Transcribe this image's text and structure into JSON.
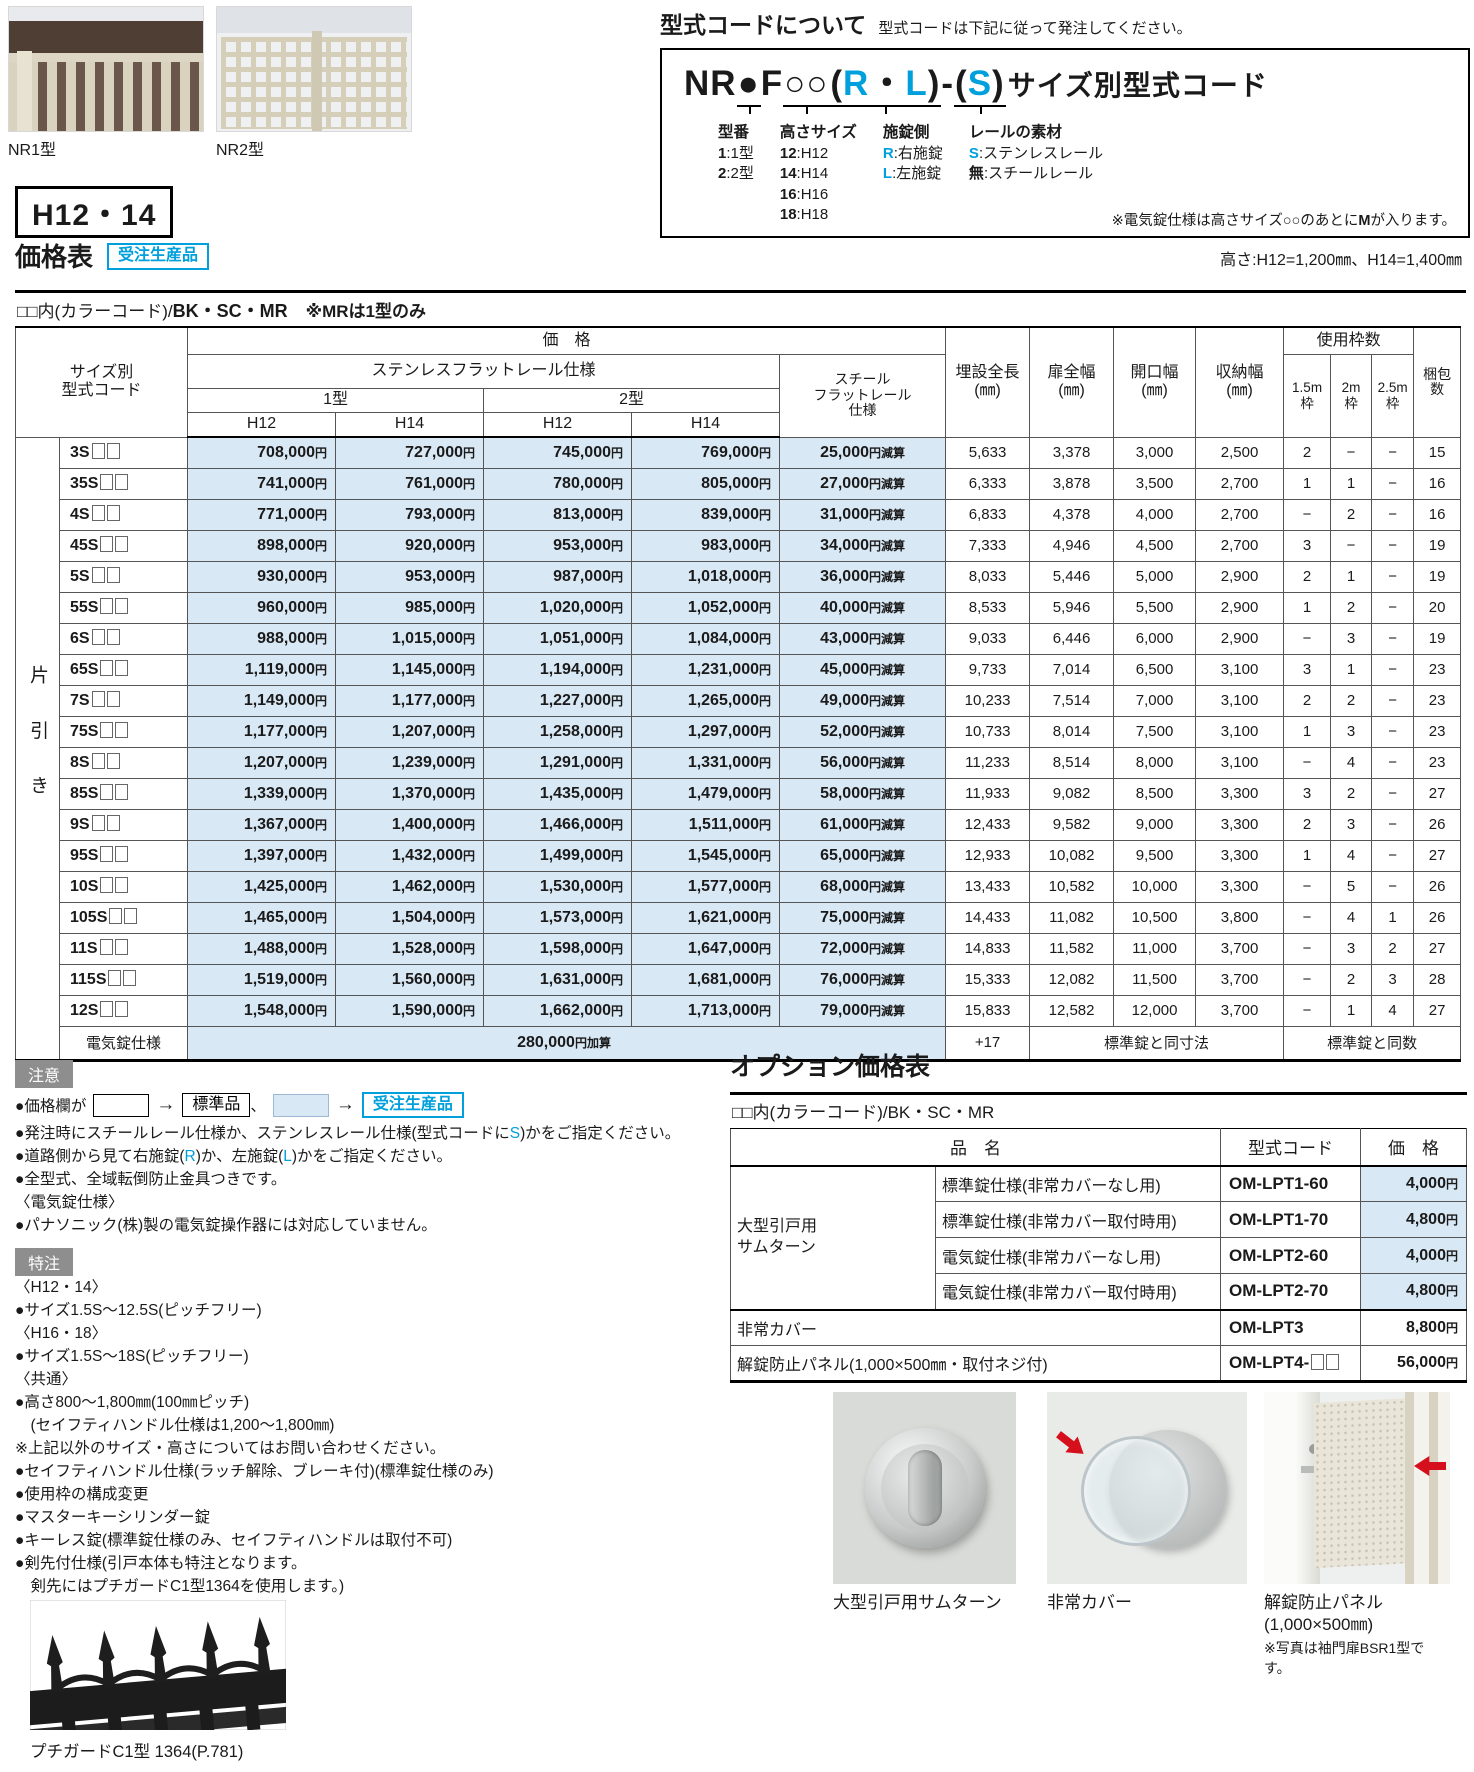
{
  "figures": {
    "nr1_caption": "NR1型",
    "nr2_caption": "NR2型"
  },
  "code_box": {
    "heading": "型式コードについて",
    "heading_note": "型式コードは下記に従って発注してください。",
    "code": {
      "prefix": "NR",
      "dot": "●",
      "f": "F",
      "circles": "○○",
      "p1": "(",
      "r": "R",
      "sep": "・",
      "l": "L",
      "p2": ")",
      "dash": "-",
      "p3": "(",
      "s": "S",
      "p4": ")",
      "suffix": "サイズ別型式コード"
    },
    "legend": [
      {
        "title": "型番",
        "items": [
          {
            "key": "1",
            "desc": ":1型"
          },
          {
            "key": "2",
            "desc": ":2型"
          }
        ]
      },
      {
        "title": "高さサイズ",
        "items": [
          {
            "key": "12",
            "desc": ":H12"
          },
          {
            "key": "14",
            "desc": ":H14"
          },
          {
            "key": "16",
            "desc": ":H16"
          },
          {
            "key": "18",
            "desc": ":H18"
          }
        ]
      },
      {
        "title": "施錠側",
        "items": [
          {
            "key": "R",
            "desc": ":右施錠",
            "blue": true
          },
          {
            "key": "L",
            "desc": ":左施錠",
            "blue": true
          }
        ]
      },
      {
        "title": "レールの素材",
        "items": [
          {
            "key": "S",
            "desc": ":ステンレスレール",
            "blue": true
          },
          {
            "key": "無",
            "desc": ":スチールレール"
          }
        ]
      }
    ],
    "note": [
      "※電気錠仕様は高さサイズ○○のあとに",
      {
        "t": "M",
        "bold": true
      },
      "が入ります。"
    ]
  },
  "height_badge": "H12・14",
  "price_section": {
    "title": "価格表",
    "badge": "受注生産品",
    "height_note": "高さ:H12=1,200㎜、H14=1,400㎜",
    "color_code": {
      "prefix": "□□内(カラーコード)/",
      "codes": "BK・SC・MR",
      "note": "※MRは1型のみ"
    }
  },
  "price_table": {
    "group_label": "片引き",
    "headers": {
      "size_code": "サイズ別\n型式コード",
      "price": "価　格",
      "stainless": "ステンレスフラットレール仕様",
      "steel": "スチール\nフラットレール\n仕様",
      "type1": "1型",
      "type2": "2型",
      "h12": "H12",
      "h14": "H14",
      "buried_length": "埋設全長\n(㎜)",
      "door_width": "扉全幅\n(㎜)",
      "opening_width": "開口幅\n(㎜)",
      "storage_width": "収納幅\n(㎜)",
      "frames_used": "使用枠数",
      "frame_15": "1.5m\n枠",
      "frame_2": "2m\n枠",
      "frame_25": "2.5m\n枠",
      "packages": "梱包\n数"
    },
    "rows": [
      {
        "code": "3S□□",
        "t1_h12": "708,000円",
        "t1_h14": "727,000円",
        "t2_h12": "745,000円",
        "t2_h14": "769,000円",
        "steel": "25,000円減算",
        "buried": "5,633",
        "door": "3,378",
        "opening": "3,000",
        "storage": "2,500",
        "f15": "2",
        "f2": "−",
        "f25": "−",
        "pack": "15"
      },
      {
        "code": "35S□□",
        "t1_h12": "741,000円",
        "t1_h14": "761,000円",
        "t2_h12": "780,000円",
        "t2_h14": "805,000円",
        "steel": "27,000円減算",
        "buried": "6,333",
        "door": "3,878",
        "opening": "3,500",
        "storage": "2,700",
        "f15": "1",
        "f2": "1",
        "f25": "−",
        "pack": "16"
      },
      {
        "code": "4S□□",
        "t1_h12": "771,000円",
        "t1_h14": "793,000円",
        "t2_h12": "813,000円",
        "t2_h14": "839,000円",
        "steel": "31,000円減算",
        "buried": "6,833",
        "door": "4,378",
        "opening": "4,000",
        "storage": "2,700",
        "f15": "−",
        "f2": "2",
        "f25": "−",
        "pack": "16"
      },
      {
        "code": "45S□□",
        "t1_h12": "898,000円",
        "t1_h14": "920,000円",
        "t2_h12": "953,000円",
        "t2_h14": "983,000円",
        "steel": "34,000円減算",
        "buried": "7,333",
        "door": "4,946",
        "opening": "4,500",
        "storage": "2,700",
        "f15": "3",
        "f2": "−",
        "f25": "−",
        "pack": "19"
      },
      {
        "code": "5S□□",
        "t1_h12": "930,000円",
        "t1_h14": "953,000円",
        "t2_h12": "987,000円",
        "t2_h14": "1,018,000円",
        "steel": "36,000円減算",
        "buried": "8,033",
        "door": "5,446",
        "opening": "5,000",
        "storage": "2,900",
        "f15": "2",
        "f2": "1",
        "f25": "−",
        "pack": "19"
      },
      {
        "code": "55S□□",
        "t1_h12": "960,000円",
        "t1_h14": "985,000円",
        "t2_h12": "1,020,000円",
        "t2_h14": "1,052,000円",
        "steel": "40,000円減算",
        "buried": "8,533",
        "door": "5,946",
        "opening": "5,500",
        "storage": "2,900",
        "f15": "1",
        "f2": "2",
        "f25": "−",
        "pack": "20"
      },
      {
        "code": "6S□□",
        "t1_h12": "988,000円",
        "t1_h14": "1,015,000円",
        "t2_h12": "1,051,000円",
        "t2_h14": "1,084,000円",
        "steel": "43,000円減算",
        "buried": "9,033",
        "door": "6,446",
        "opening": "6,000",
        "storage": "2,900",
        "f15": "−",
        "f2": "3",
        "f25": "−",
        "pack": "19"
      },
      {
        "code": "65S□□",
        "t1_h12": "1,119,000円",
        "t1_h14": "1,145,000円",
        "t2_h12": "1,194,000円",
        "t2_h14": "1,231,000円",
        "steel": "45,000円減算",
        "buried": "9,733",
        "door": "7,014",
        "opening": "6,500",
        "storage": "3,100",
        "f15": "3",
        "f2": "1",
        "f25": "−",
        "pack": "23"
      },
      {
        "code": "7S□□",
        "t1_h12": "1,149,000円",
        "t1_h14": "1,177,000円",
        "t2_h12": "1,227,000円",
        "t2_h14": "1,265,000円",
        "steel": "49,000円減算",
        "buried": "10,233",
        "door": "7,514",
        "opening": "7,000",
        "storage": "3,100",
        "f15": "2",
        "f2": "2",
        "f25": "−",
        "pack": "23"
      },
      {
        "code": "75S□□",
        "t1_h12": "1,177,000円",
        "t1_h14": "1,207,000円",
        "t2_h12": "1,258,000円",
        "t2_h14": "1,297,000円",
        "steel": "52,000円減算",
        "buried": "10,733",
        "door": "8,014",
        "opening": "7,500",
        "storage": "3,100",
        "f15": "1",
        "f2": "3",
        "f25": "−",
        "pack": "23"
      },
      {
        "code": "8S□□",
        "t1_h12": "1,207,000円",
        "t1_h14": "1,239,000円",
        "t2_h12": "1,291,000円",
        "t2_h14": "1,331,000円",
        "steel": "56,000円減算",
        "buried": "11,233",
        "door": "8,514",
        "opening": "8,000",
        "storage": "3,100",
        "f15": "−",
        "f2": "4",
        "f25": "−",
        "pack": "23"
      },
      {
        "code": "85S□□",
        "t1_h12": "1,339,000円",
        "t1_h14": "1,370,000円",
        "t2_h12": "1,435,000円",
        "t2_h14": "1,479,000円",
        "steel": "58,000円減算",
        "buried": "11,933",
        "door": "9,082",
        "opening": "8,500",
        "storage": "3,300",
        "f15": "3",
        "f2": "2",
        "f25": "−",
        "pack": "27"
      },
      {
        "code": "9S□□",
        "t1_h12": "1,367,000円",
        "t1_h14": "1,400,000円",
        "t2_h12": "1,466,000円",
        "t2_h14": "1,511,000円",
        "steel": "61,000円減算",
        "buried": "12,433",
        "door": "9,582",
        "opening": "9,000",
        "storage": "3,300",
        "f15": "2",
        "f2": "3",
        "f25": "−",
        "pack": "26"
      },
      {
        "code": "95S□□",
        "t1_h12": "1,397,000円",
        "t1_h14": "1,432,000円",
        "t2_h12": "1,499,000円",
        "t2_h14": "1,545,000円",
        "steel": "65,000円減算",
        "buried": "12,933",
        "door": "10,082",
        "opening": "9,500",
        "storage": "3,300",
        "f15": "1",
        "f2": "4",
        "f25": "−",
        "pack": "27"
      },
      {
        "code": "10S□□",
        "t1_h12": "1,425,000円",
        "t1_h14": "1,462,000円",
        "t2_h12": "1,530,000円",
        "t2_h14": "1,577,000円",
        "steel": "68,000円減算",
        "buried": "13,433",
        "door": "10,582",
        "opening": "10,000",
        "storage": "3,300",
        "f15": "−",
        "f2": "5",
        "f25": "−",
        "pack": "26"
      },
      {
        "code": "105S□□",
        "t1_h12": "1,465,000円",
        "t1_h14": "1,504,000円",
        "t2_h12": "1,573,000円",
        "t2_h14": "1,621,000円",
        "steel": "75,000円減算",
        "buried": "14,433",
        "door": "11,082",
        "opening": "10,500",
        "storage": "3,800",
        "f15": "−",
        "f2": "4",
        "f25": "1",
        "pack": "26"
      },
      {
        "code": "11S□□",
        "t1_h12": "1,488,000円",
        "t1_h14": "1,528,000円",
        "t2_h12": "1,598,000円",
        "t2_h14": "1,647,000円",
        "steel": "72,000円減算",
        "buried": "14,833",
        "door": "11,582",
        "opening": "11,000",
        "storage": "3,700",
        "f15": "−",
        "f2": "3",
        "f25": "2",
        "pack": "27"
      },
      {
        "code": "115S□□",
        "t1_h12": "1,519,000円",
        "t1_h14": "1,560,000円",
        "t2_h12": "1,631,000円",
        "t2_h14": "1,681,000円",
        "steel": "76,000円減算",
        "buried": "15,333",
        "door": "12,082",
        "opening": "11,500",
        "storage": "3,700",
        "f15": "−",
        "f2": "2",
        "f25": "3",
        "pack": "28"
      },
      {
        "code": "12S□□",
        "t1_h12": "1,548,000円",
        "t1_h14": "1,590,000円",
        "t2_h12": "1,662,000円",
        "t2_h14": "1,713,000円",
        "steel": "79,000円減算",
        "buried": "15,833",
        "door": "12,582",
        "opening": "12,000",
        "storage": "3,700",
        "f15": "−",
        "f2": "1",
        "f25": "4",
        "pack": "27"
      }
    ],
    "electric_row": {
      "label": "電気錠仕様",
      "price": "280,000円加算",
      "buried": "+17",
      "dims": "標準錠と同寸法",
      "frames": "標準錠と同数"
    }
  },
  "notes": {
    "badge": "注意",
    "box_line": {
      "prefix": "●価格欄が",
      "arrow": "→",
      "standard": "標準品",
      "comma": "、",
      "made_to_order": "受注生産品"
    },
    "items": [
      [
        "●発注時にスチールレール仕様か、ステンレスレール仕様(型式コードに",
        {
          "t": "S",
          "blue": true
        },
        ")かをご指定ください。"
      ],
      [
        "●道路側から見て右施錠(",
        {
          "t": "R",
          "blue": true
        },
        ")か、左施錠(",
        {
          "t": "L",
          "blue": true
        },
        ")かをご指定ください。"
      ],
      "●全型式、全域転倒防止金具つきです。",
      "〈電気錠仕様〉",
      "●パナソニック(株)製の電気錠操作器には対応していません。"
    ]
  },
  "custom": {
    "badge": "特注",
    "items": [
      "〈H12・14〉",
      "●サイズ1.5S〜12.5S(ピッチフリー)",
      "〈H16・18〉",
      "●サイズ1.5S〜18S(ピッチフリー)",
      "〈共通〉",
      "●高さ800〜1,800㎜(100㎜ピッチ)",
      "　(セイフティハンドル仕様は1,200〜1,800㎜)",
      "※上記以外のサイズ・高さについてはお問い合わせください。",
      "●セイフティハンドル仕様(ラッチ解除、ブレーキ付)(標準錠仕様のみ)",
      "●使用枠の構成変更",
      "●マスターキーシリンダー錠",
      "●キーレス錠(標準錠仕様のみ、セイフティハンドルは取付不可)",
      "●剣先付仕様(引戸本体も特注となります。",
      "　剣先にはプチガードC1型1364を使用します。)"
    ],
    "photo_caption": "プチガードC1型 1364(P.781)"
  },
  "options": {
    "title": "オプション価格表",
    "color_code": {
      "prefix": "□□内(カラーコード)/",
      "codes": "BK・SC・MR"
    },
    "headers": {
      "name": "品　名",
      "code": "型式コード",
      "price": "価　格"
    },
    "group_rows": {
      "group": "大型引戸用\nサムターン",
      "rows": [
        {
          "name": "標準錠仕様(非常カバーなし用)",
          "code": "OM-LPT1-60",
          "price": "4,000円",
          "blue": true
        },
        {
          "name": "標準錠仕様(非常カバー取付時用)",
          "code": "OM-LPT1-70",
          "price": "4,800円",
          "blue": true
        },
        {
          "name": "電気錠仕様(非常カバーなし用)",
          "code": "OM-LPT2-60",
          "price": "4,000円",
          "blue": true
        },
        {
          "name": "電気錠仕様(非常カバー取付時用)",
          "code": "OM-LPT2-70",
          "price": "4,800円",
          "blue": true
        }
      ]
    },
    "rows": [
      {
        "name": "非常カバー",
        "code": "OM-LPT3",
        "price": "8,800円",
        "blue": false
      },
      {
        "name": "解錠防止パネル(1,000×500㎜・取付ネジ付)",
        "code": "OM-LPT4-□□",
        "price": "56,000円",
        "blue": false
      }
    ],
    "photos": [
      {
        "caption": "大型引戸用サムターン"
      },
      {
        "caption": "非常カバー"
      },
      {
        "caption": "解錠防止パネル\n(1,000×500㎜)",
        "note": "※写真は袖門扉BSR1型です。"
      }
    ]
  },
  "colors": {
    "accent_blue": "#00a0dc",
    "cell_blue": "#d9e8f5",
    "badge_gray": "#8e8e8e",
    "alert_red": "#d5101c"
  }
}
